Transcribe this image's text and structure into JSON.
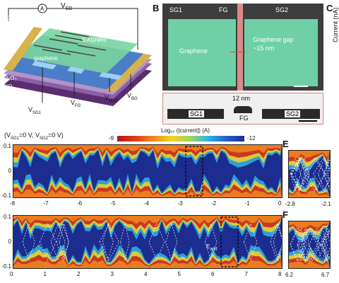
{
  "panel_a": {
    "label_vsd": "V",
    "label_vsd_sub": "SD",
    "label_ammeter": "A",
    "label_crau": "Cr/Au",
    "label_agnrs": "9-AGNRs",
    "label_graphene": "graphene",
    "label_al2o3": "Al₂O₃",
    "label_sio2": "SiO₂",
    "label_si": "Si⁺⁺⁺",
    "gate_labels": [
      {
        "main": "V",
        "sub": "SG1"
      },
      {
        "main": "V",
        "sub": "FG"
      },
      {
        "main": "V",
        "sub": "SG2"
      },
      {
        "main": "V",
        "sub": "BG"
      }
    ]
  },
  "panel_b": {
    "letter": "B",
    "label_sg1": "SG1",
    "label_fg": "FG",
    "label_sg2": "SG2",
    "label_graphene": "Graphene",
    "label_gap": "Graphene gap",
    "label_gap_size": "~15 nm",
    "inset_scale": "12 nm",
    "inset_sg1": "SG1",
    "inset_fg": "FG",
    "inset_sg2": "SG2"
  },
  "panel_c": {
    "letter": "C",
    "ylabel": "Current (nA)"
  },
  "panel_d": {
    "title": "(V",
    "title_sub1": "SG1",
    "title_mid": "=0 V, V",
    "title_sub2": "SG2",
    "title_end": "=0 V)",
    "colorbar_label": "Log₁₀ (|current|) (A)",
    "colorbar_min": "-9",
    "colorbar_max": "-12",
    "top_y_ticks": [
      "0.1",
      "0",
      "-0.1"
    ],
    "top_x_ticks": [
      "-8",
      "-7",
      "-6",
      "-5",
      "-4",
      "-3",
      "-2",
      "-1",
      "0"
    ],
    "bottom_y_ticks": [
      "0.1",
      "0",
      "-0.1"
    ],
    "bottom_x_ticks": [
      "0",
      "1",
      "2",
      "3",
      "4",
      "5",
      "6",
      "7",
      "8"
    ],
    "annotation_eadd": "E",
    "annotation_eadd_sub": "add"
  },
  "panel_e": {
    "letter": "E",
    "x_ticks": [
      "-2.8",
      "-2.1"
    ]
  },
  "panel_f": {
    "letter": "F",
    "x_ticks": [
      "6.2",
      "6.7"
    ]
  },
  "colors": {
    "map_blue": "#1c2c8f",
    "map_red": "#c81e1e",
    "map_yellow": "#f5d21e",
    "map_cyan": "#2fb4e6",
    "graphene_green": "#6fd0a8",
    "gap_red": "#e04040",
    "gold": "#d8b24a"
  }
}
